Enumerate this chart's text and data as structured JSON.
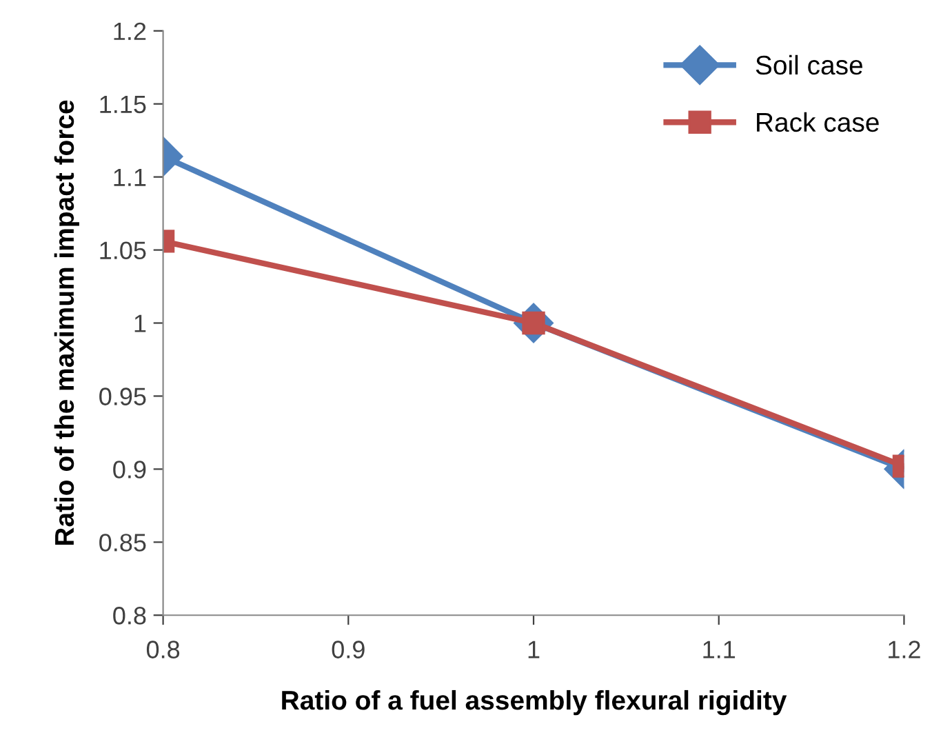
{
  "chart_data": {
    "type": "line",
    "xlabel": "Ratio of a fuel assembly flexural rigidity",
    "ylabel": "Ratio of the maximum impact force",
    "x": [
      0.8,
      1,
      1.2
    ],
    "series": [
      {
        "name": "Soil case",
        "color": "#4f81bd",
        "marker": "diamond",
        "values": [
          1.114,
          1.0,
          0.9
        ]
      },
      {
        "name": "Rack case",
        "color": "#c0504d",
        "marker": "square",
        "values": [
          1.056,
          1.0,
          0.902
        ]
      }
    ],
    "xlim": [
      0.8,
      1.2
    ],
    "xticks": [
      0.8,
      0.9,
      1,
      1.1,
      1.2
    ],
    "ylim": [
      0.8,
      1.2
    ],
    "yticks": [
      0.8,
      0.85,
      0.9,
      0.95,
      1,
      1.05,
      1.1,
      1.15,
      1.2
    ],
    "grid": false,
    "legend": "top right",
    "line_style": "solid"
  }
}
